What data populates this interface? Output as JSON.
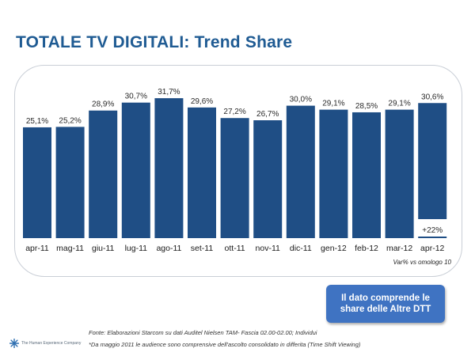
{
  "title": "TOTALE TV DIGITALI: Trend Share",
  "chart_data": {
    "type": "bar",
    "categories": [
      "apr-11",
      "mag-11",
      "giu-11",
      "lug-11",
      "ago-11",
      "set-11",
      "ott-11",
      "nov-11",
      "dic-11",
      "gen-12",
      "feb-12",
      "mar-12",
      "apr-12"
    ],
    "values": [
      25.1,
      25.2,
      28.9,
      30.7,
      31.7,
      29.6,
      27.2,
      26.7,
      30.0,
      29.1,
      28.5,
      29.1,
      30.6
    ],
    "value_labels": [
      "25,1%",
      "25,2%",
      "28,9%",
      "30,7%",
      "31,7%",
      "29,6%",
      "27,2%",
      "26,7%",
      "30,0%",
      "29,1%",
      "28,5%",
      "29,1%",
      "30,6%"
    ],
    "annotation": {
      "category": "apr-12",
      "text": "+22%"
    },
    "xlabel": "",
    "ylabel": "",
    "ylim": [
      0,
      35
    ],
    "bar_color": "#1f4e85",
    "grid": false
  },
  "var_note": "Var% vs omologo 10",
  "callout": "Il dato comprende le share delle Altre DTT",
  "source": "Fonte: Elaborazioni Starcom su dati Auditel Nielsen TAM- Fascia 02.00-02.00; Individui",
  "footnote": "*Da maggio 2011 le audience sono comprensive dell'ascolto consolidato in differita (Time Shift Viewing)",
  "logo_text": "The Human Experience Company",
  "logo_color": "#2e6fb0"
}
